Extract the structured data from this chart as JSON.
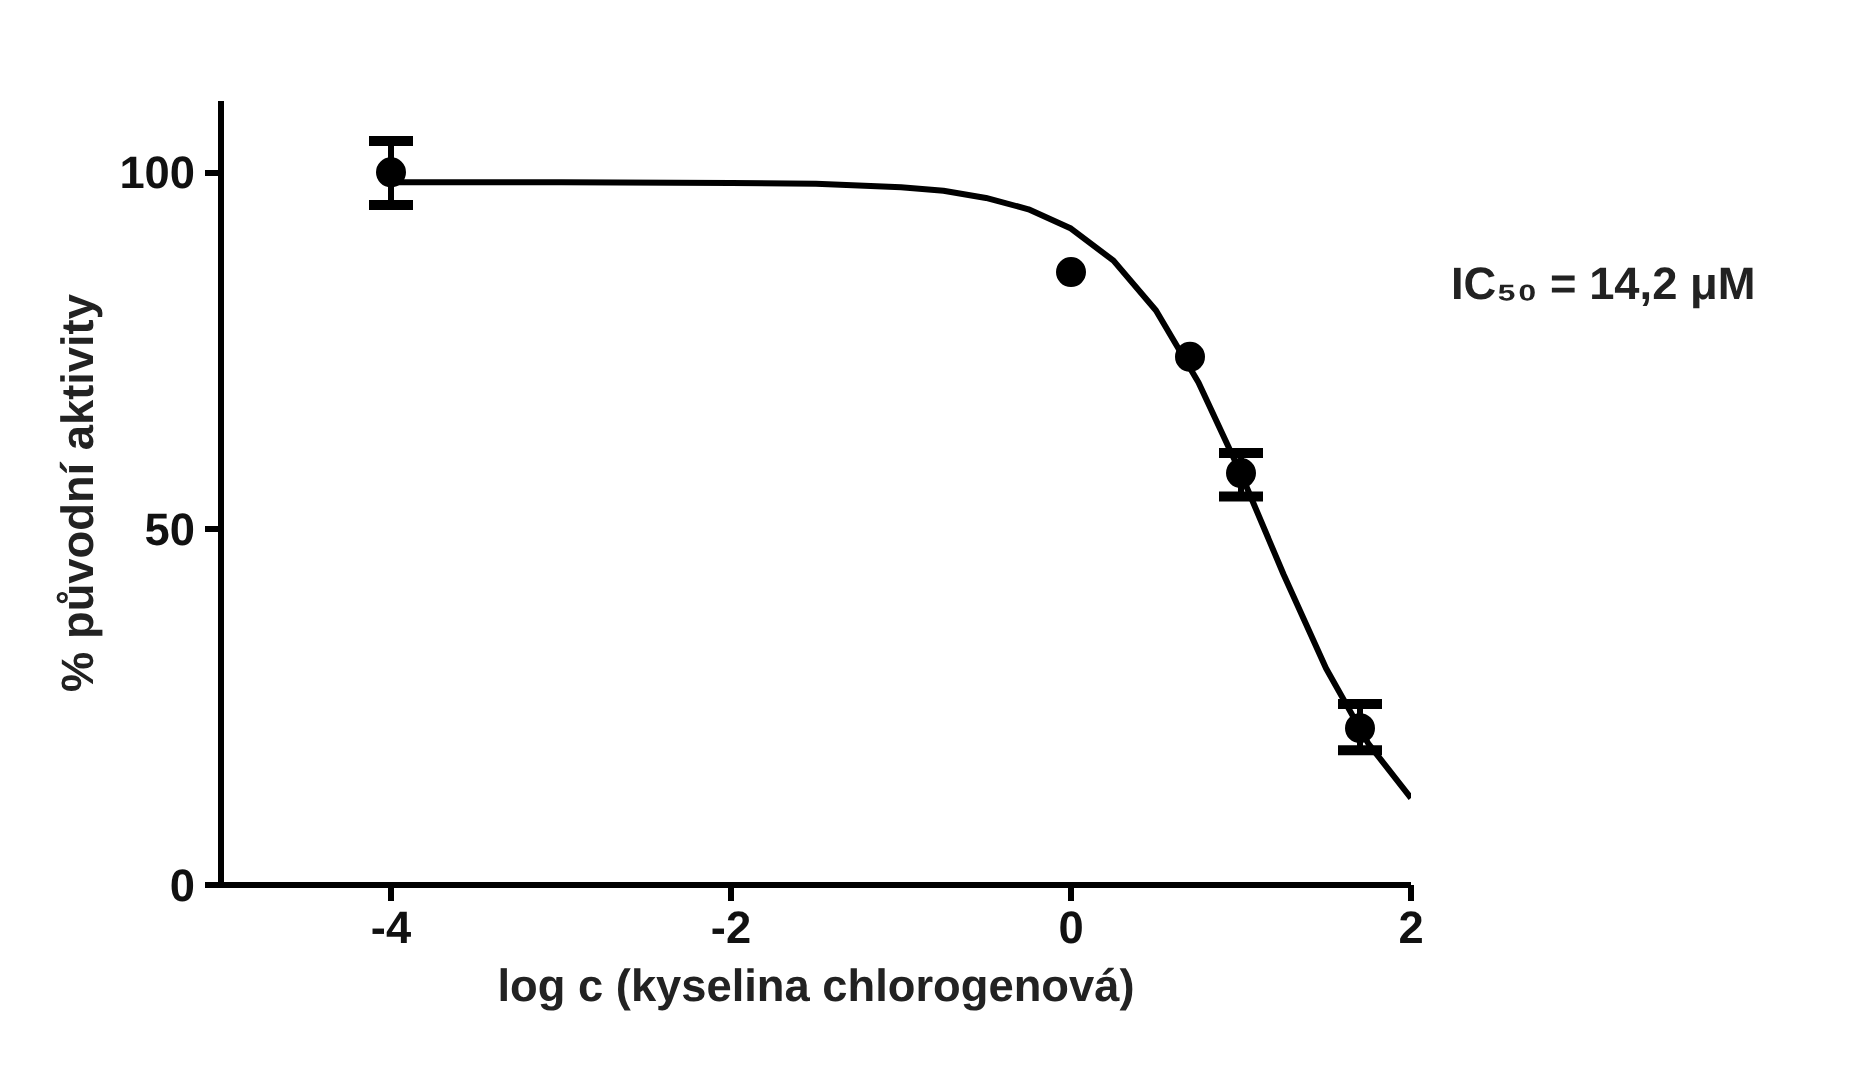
{
  "chart_data": {
    "type": "scatter",
    "xlabel": "log c (kyselina chlorogenová)",
    "ylabel": "% původní aktivity",
    "annotations": [
      "IC₅₀ = 14,2 μM"
    ],
    "xlim": [
      -5,
      2
    ],
    "xticks": [
      -4,
      -2,
      0,
      2
    ],
    "ylim": [
      0,
      110
    ],
    "yticks": [
      0,
      50,
      100
    ],
    "grid": false,
    "marker": "circle",
    "series": [
      {
        "color": "#000000",
        "x": [
          -4,
          0,
          0.7,
          1,
          1.7
        ],
        "values": [
          100,
          86,
          74.1,
          57.8,
          22
        ],
        "errors": [
          [
            95.4,
            104.4
          ],
          null,
          null,
          [
            54.5,
            60.6
          ],
          [
            18.9,
            25.4
          ]
        ]
      },
      {
        "type": "line",
        "color": "#000000",
        "marker": "none",
        "line_style": "solid",
        "x": [
          -4,
          -3,
          -2,
          -1.5,
          -1,
          -0.75,
          -0.5,
          -0.25,
          0,
          0.25,
          0.5,
          0.75,
          1,
          1.25,
          1.5,
          1.75,
          2
        ],
        "values": [
          98.6,
          98.6,
          98.5,
          98.4,
          97.9,
          97.4,
          96.4,
          94.8,
          92.1,
          87.6,
          80.6,
          70.5,
          57.7,
          43.6,
          30.4,
          19.8,
          12.2
        ]
      }
    ]
  }
}
